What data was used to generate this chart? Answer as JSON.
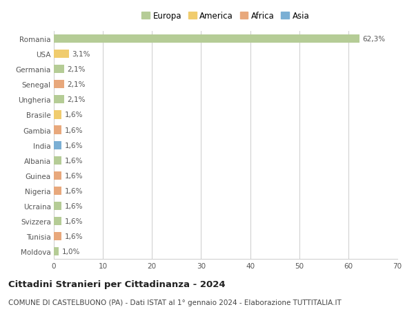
{
  "countries": [
    "Romania",
    "USA",
    "Germania",
    "Senegal",
    "Ungheria",
    "Brasile",
    "Gambia",
    "India",
    "Albania",
    "Guinea",
    "Nigeria",
    "Ucraina",
    "Svizzera",
    "Tunisia",
    "Moldova"
  ],
  "values": [
    62.3,
    3.1,
    2.1,
    2.1,
    2.1,
    1.6,
    1.6,
    1.6,
    1.6,
    1.6,
    1.6,
    1.6,
    1.6,
    1.6,
    1.0
  ],
  "labels": [
    "62,3%",
    "3,1%",
    "2,1%",
    "2,1%",
    "2,1%",
    "1,6%",
    "1,6%",
    "1,6%",
    "1,6%",
    "1,6%",
    "1,6%",
    "1,6%",
    "1,6%",
    "1,6%",
    "1,0%"
  ],
  "continents": [
    "Europa",
    "America",
    "Europa",
    "Africa",
    "Europa",
    "America",
    "Africa",
    "Asia",
    "Europa",
    "Africa",
    "Africa",
    "Europa",
    "Europa",
    "Africa",
    "Europa"
  ],
  "continent_colors": {
    "Europa": "#b5cc96",
    "America": "#f0cc6e",
    "Africa": "#e8a87c",
    "Asia": "#7bafd4"
  },
  "legend_order": [
    "Europa",
    "America",
    "Africa",
    "Asia"
  ],
  "xlim": [
    0,
    70
  ],
  "xticks": [
    0,
    10,
    20,
    30,
    40,
    50,
    60,
    70
  ],
  "title": "Cittadini Stranieri per Cittadinanza - 2024",
  "subtitle": "COMUNE DI CASTELBUONO (PA) - Dati ISTAT al 1° gennaio 2024 - Elaborazione TUTTITALIA.IT",
  "background_color": "#ffffff",
  "grid_color": "#cccccc",
  "bar_height": 0.55,
  "title_fontsize": 9.5,
  "subtitle_fontsize": 7.5,
  "label_fontsize": 7.5,
  "tick_fontsize": 7.5,
  "legend_fontsize": 8.5
}
